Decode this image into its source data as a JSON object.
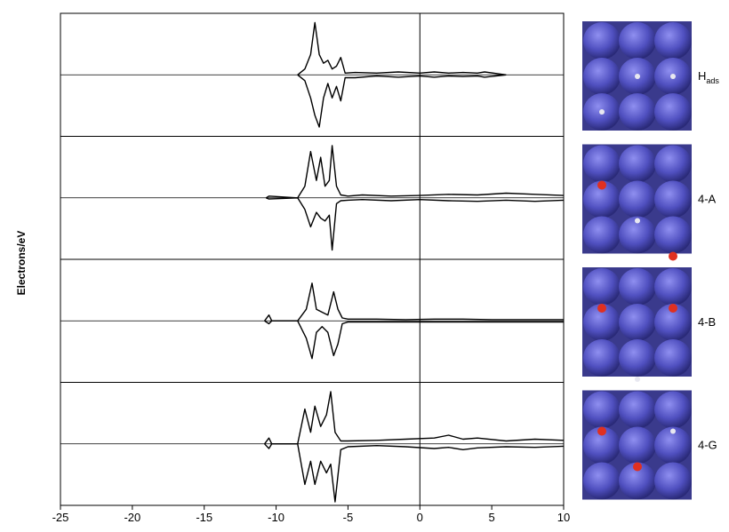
{
  "chart_data": {
    "type": "line",
    "y_label": "Electrons/eV",
    "xlim": [
      -25,
      10
    ],
    "xticks": [
      -25,
      -20,
      -15,
      -10,
      -5,
      0,
      5,
      10
    ],
    "ylim": [
      -1,
      1
    ],
    "panels": [
      {
        "label": {
          "text": "H",
          "subscript": "ads"
        },
        "x": [
          -8.5,
          -8,
          -7.6,
          -7.3,
          -7,
          -6.7,
          -6.4,
          -6.1,
          -5.8,
          -5.5,
          -5.2,
          -4.5,
          -3,
          -1.5,
          0,
          1,
          2,
          3,
          4,
          4.5,
          6
        ],
        "series": [
          {
            "color": "#000000",
            "values": [
              0,
              0.1,
              0.35,
              0.9,
              0.35,
              0.2,
              0.25,
              0.1,
              0.15,
              0.3,
              0.03,
              0.04,
              0.03,
              0.05,
              0.03,
              0.05,
              0.03,
              0.04,
              0.03,
              0.05,
              0
            ]
          },
          {
            "color": "#000000",
            "values": [
              0,
              -0.1,
              -0.4,
              -0.7,
              -0.9,
              -0.4,
              -0.15,
              -0.4,
              -0.2,
              -0.45,
              -0.05,
              -0.05,
              -0.02,
              -0.04,
              -0.02,
              -0.04,
              -0.02,
              -0.03,
              -0.02,
              -0.04,
              0
            ]
          }
        ]
      },
      {
        "label": {
          "text": "4-A"
        },
        "x": [
          -10.7,
          -10.5,
          -8.5,
          -8,
          -7.6,
          -7.2,
          -6.9,
          -6.6,
          -6.3,
          -6.1,
          -5.8,
          -5.5,
          -5,
          -4,
          -2,
          0,
          2,
          4,
          6,
          8,
          10
        ],
        "series": [
          {
            "color": "#000000",
            "values": [
              0,
              0.03,
              0,
              0.2,
              0.8,
              0.3,
              0.7,
              0.2,
              0.3,
              0.9,
              0.2,
              0.05,
              0.03,
              0.05,
              0.03,
              0.04,
              0.06,
              0.05,
              0.08,
              0.06,
              0.04
            ]
          },
          {
            "color": "#000000",
            "values": [
              0,
              -0.02,
              0,
              -0.2,
              -0.5,
              -0.25,
              -0.35,
              -0.4,
              -0.3,
              -0.9,
              -0.1,
              -0.05,
              -0.04,
              -0.03,
              -0.05,
              -0.03,
              -0.05,
              -0.06,
              -0.04,
              -0.06,
              -0.04
            ]
          }
        ]
      },
      {
        "label": {
          "text": "4-B"
        },
        "x": [
          -10.8,
          -10.5,
          -10.3,
          -8.5,
          -7.9,
          -7.5,
          -7.2,
          -6.8,
          -6.4,
          -6,
          -5.7,
          -5.4,
          -5,
          -3,
          -1,
          1,
          3,
          5,
          7,
          10
        ],
        "series": [
          {
            "color": "#000000",
            "values": [
              0,
              0.1,
              0,
              0,
              0.2,
              0.65,
              0.2,
              0.15,
              0.1,
              0.5,
              0.2,
              0.05,
              0.03,
              0.03,
              0.02,
              0.03,
              0.03,
              0.02,
              0.02,
              0.02
            ]
          },
          {
            "color": "#000000",
            "values": [
              0,
              -0.05,
              0,
              0,
              -0.3,
              -0.65,
              -0.2,
              -0.1,
              -0.2,
              -0.6,
              -0.4,
              -0.05,
              -0.02,
              -0.02,
              -0.02,
              -0.02,
              -0.02,
              -0.02,
              -0.02,
              -0.02
            ]
          }
        ]
      },
      {
        "label": {
          "text": "4-G"
        },
        "x": [
          -10.8,
          -10.5,
          -10.3,
          -8.5,
          -8,
          -7.6,
          -7.3,
          -6.9,
          -6.5,
          -6.2,
          -5.9,
          -5.5,
          -5,
          -3,
          -1,
          1,
          2,
          3,
          4,
          6,
          8,
          10
        ],
        "series": [
          {
            "color": "#000000",
            "values": [
              0,
              0.1,
              0,
              0,
              0.6,
              0.2,
              0.65,
              0.3,
              0.5,
              0.9,
              0.2,
              0.05,
              0.05,
              0.06,
              0.08,
              0.1,
              0.15,
              0.08,
              0.1,
              0.05,
              0.08,
              0.06
            ]
          },
          {
            "color": "#000000",
            "values": [
              0,
              -0.08,
              0,
              0,
              -0.7,
              -0.3,
              -0.7,
              -0.3,
              -0.5,
              -0.35,
              -1.0,
              -0.1,
              -0.05,
              -0.03,
              -0.05,
              -0.08,
              -0.06,
              -0.1,
              -0.07,
              -0.05,
              -0.06,
              -0.04
            ]
          }
        ]
      }
    ]
  }
}
